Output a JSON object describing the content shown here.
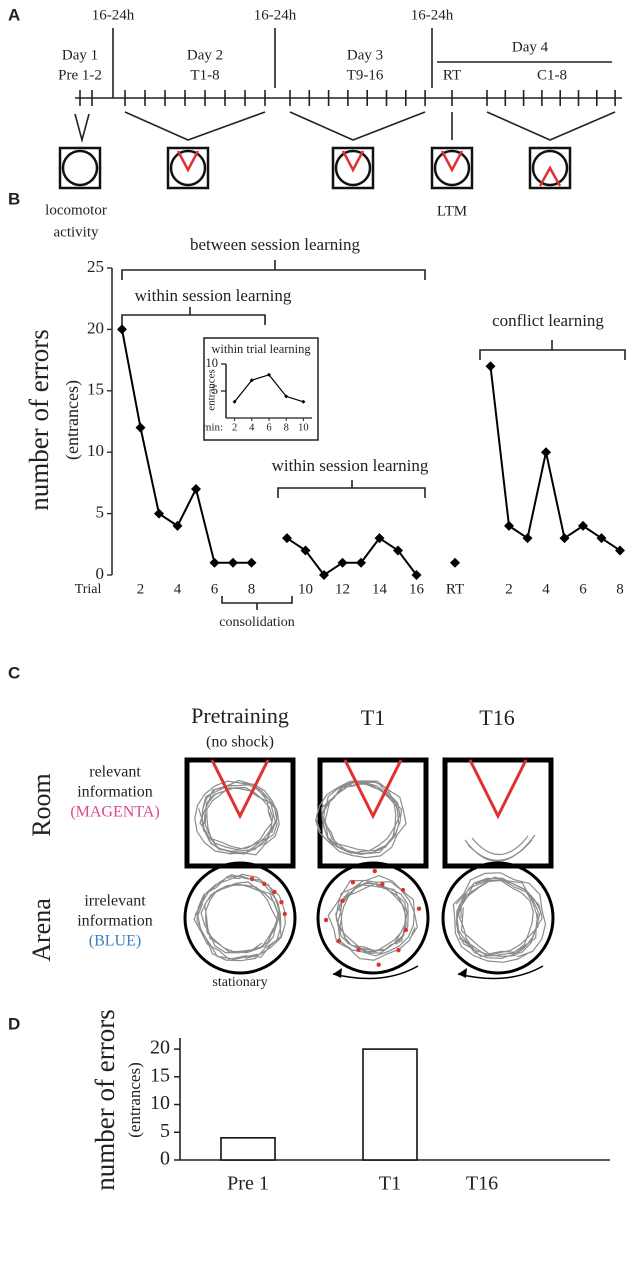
{
  "panels": [
    "A",
    "B",
    "C",
    "D"
  ],
  "panel_a": {
    "intervals": [
      "16-24h",
      "16-24h",
      "16-24h"
    ],
    "days": [
      {
        "day": "Day 1",
        "trials": "Pre 1-2"
      },
      {
        "day": "Day 2",
        "trials": "T1-8"
      },
      {
        "day": "Day 3",
        "trials": "T9-16"
      },
      {
        "day": "Day 4",
        "trials": [
          "RT",
          "C1-8"
        ]
      }
    ],
    "notes": {
      "locomotor": [
        "locomotor",
        "activity"
      ],
      "ltm": "LTM"
    }
  },
  "chart_data": [
    {
      "type": "line",
      "ylabel": "number of errors",
      "ylabel_unit": "(entrances)",
      "xlabel": "Trial",
      "categories": [
        null,
        "2",
        null,
        "4",
        null,
        "6",
        null,
        "8",
        null,
        "10",
        null,
        "12",
        null,
        "14",
        null,
        "16",
        "RT",
        null,
        "2",
        null,
        "4",
        null,
        "6",
        null,
        "8"
      ],
      "series": [
        {
          "color": "#000000",
          "values": [
            20,
            12,
            5,
            4,
            7,
            1,
            1,
            1,
            null,
            null,
            null,
            null,
            null,
            null,
            null,
            null,
            null,
            null,
            null,
            null,
            null,
            null,
            null,
            null,
            null
          ]
        },
        {
          "color": "#000000",
          "values": [
            null,
            null,
            null,
            null,
            null,
            null,
            null,
            null,
            3,
            2,
            0,
            1,
            1,
            3,
            2,
            0,
            null,
            null,
            null,
            null,
            null,
            null,
            null,
            null,
            null
          ]
        },
        {
          "color": "#000000",
          "values": [
            null,
            null,
            null,
            null,
            null,
            null,
            null,
            null,
            null,
            null,
            null,
            null,
            null,
            null,
            null,
            null,
            1,
            null,
            null,
            null,
            null,
            null,
            null,
            null,
            null
          ]
        },
        {
          "color": "#000000",
          "values": [
            null,
            null,
            null,
            null,
            null,
            null,
            null,
            null,
            null,
            null,
            null,
            null,
            null,
            null,
            null,
            null,
            null,
            17,
            4,
            3,
            10,
            3,
            4,
            3,
            2
          ]
        }
      ],
      "ylim": [
        0,
        25
      ],
      "yticks": [
        0,
        5,
        10,
        15,
        20,
        25
      ],
      "annotations": [
        "between session learning",
        "within session learning",
        "within session learning",
        "conflict learning",
        "consolidation"
      ]
    },
    {
      "type": "line",
      "title": "within trial learning",
      "ylabel": "entrances",
      "xlabel": "min:",
      "x": [
        2,
        4,
        6,
        8,
        10
      ],
      "series": [
        {
          "color": "#000000",
          "values": [
            3,
            7,
            8,
            4,
            3
          ]
        }
      ],
      "xlim": [
        1,
        11
      ],
      "xticks": [
        2,
        4,
        6,
        8,
        10
      ],
      "ylim": [
        0,
        10
      ],
      "yticks": [
        5,
        10
      ]
    },
    {
      "type": "bar",
      "ylabel": "number of errors",
      "ylabel_unit": "(entrances)",
      "categories": [
        "Pre 1",
        "T1",
        "T16"
      ],
      "values": [
        4,
        20,
        0
      ],
      "color": "#ffffff",
      "ylim": [
        0,
        22
      ],
      "yticks": [
        0,
        5,
        10,
        15,
        20
      ]
    }
  ],
  "panel_c": {
    "columns": [
      [
        "Pretraining",
        "(no shock)"
      ],
      "T1",
      "T16"
    ],
    "rows": [
      {
        "frame": "Room",
        "lines": [
          "relevant",
          "information",
          "(MAGENTA)"
        ]
      },
      {
        "frame": "Arena",
        "lines": [
          "irrelevant",
          "information",
          "(BLUE)"
        ]
      }
    ],
    "note": "stationary"
  }
}
